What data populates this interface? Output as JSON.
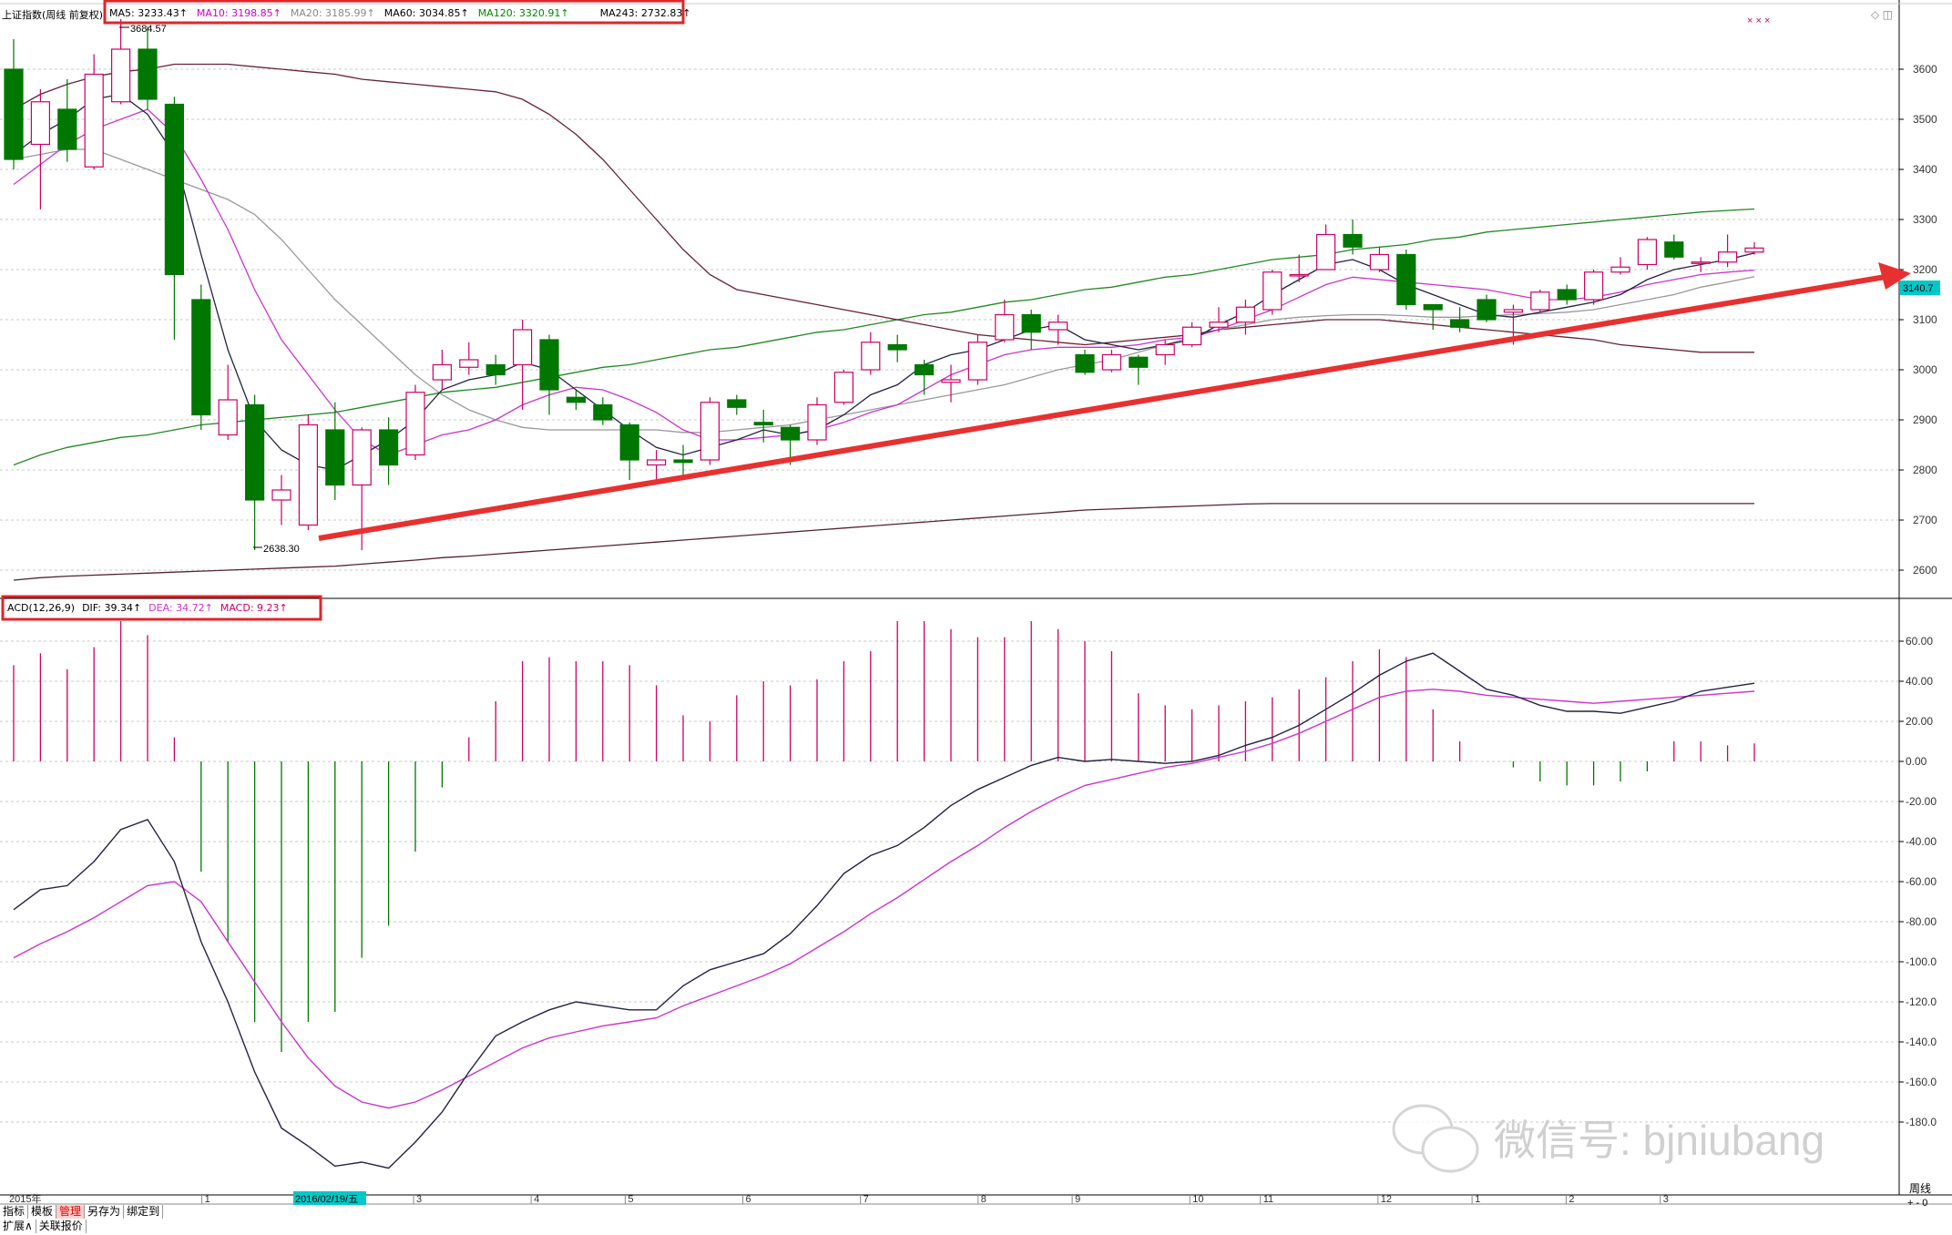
{
  "header": {
    "title": "上证指数(周线 前复权)",
    "ma": [
      {
        "label": "MA5: 3233.43↑",
        "color": "#000000"
      },
      {
        "label": "MA10: 3198.85↑",
        "color": "#cc00cc"
      },
      {
        "label": "MA20: 3185.99↑",
        "color": "#888888"
      },
      {
        "label": "MA60: 3034.85↑",
        "color": "#000000"
      },
      {
        "label": "MA120: 3320.91↑",
        "color": "#008800"
      },
      {
        "label": "MA243: 2732.83↑",
        "color": "#000000"
      }
    ],
    "marks": "× × ×",
    "window_icons": "◇ ◫"
  },
  "macd_header": {
    "name": "ACD(12,26,9)",
    "dif": "DIF: 39.34↑",
    "dea": "DEA: 34.72↑",
    "macd": "MACD: 9.23↑"
  },
  "price_axis": [
    "3600",
    "3500",
    "3400",
    "3300",
    "3200",
    "3100",
    "3000",
    "2900",
    "2800",
    "2700",
    "2600"
  ],
  "macd_axis": [
    "60.00",
    "40.00",
    "20.00",
    "0.00",
    "-20.00",
    "-40.00",
    "-60.00",
    "-80.00",
    "-100.0",
    "-120.0",
    "-140.0",
    "-160.0",
    "-180.0"
  ],
  "current_price": "3140.7",
  "annotations": {
    "high": "3684.57",
    "low": "2638.30"
  },
  "time_axis": {
    "year_label": "2015年",
    "months": [
      "1",
      "2",
      "3",
      "4",
      "5",
      "6",
      "7",
      "8",
      "9",
      "10",
      "11",
      "12",
      "1",
      "2",
      "3"
    ],
    "cursor_date": "2016/02/19/五"
  },
  "period_label": "周线",
  "bottom_tabs": [
    "指标",
    "模板",
    "管理",
    "另存为",
    "绑定到"
  ],
  "bottom_tabs2": [
    "扩展∧",
    "关联报价"
  ],
  "corner_buttons": "+ - 0",
  "watermark": "微信号: bjniubang",
  "colors": {
    "up": "#cc0066",
    "down": "#007700",
    "ma5": "#222244",
    "ma10": "#cc33cc",
    "ma20": "#999999",
    "ma60": "#662233",
    "ma120": "#228822",
    "ma243": "#552233",
    "highlight": "#ff0000",
    "trend_arrow": "#e83030"
  },
  "chart_data": {
    "type": "candlestick",
    "period": "weekly",
    "candles": [
      [
        3600,
        3420,
        3660,
        3400
      ],
      [
        3450,
        3535,
        3560,
        3320
      ],
      [
        3520,
        3440,
        3580,
        3415
      ],
      [
        3405,
        3590,
        3630,
        3400
      ],
      [
        3535,
        3640,
        3700,
        3530
      ],
      [
        3640,
        3540,
        3685,
        3520
      ],
      [
        3530,
        3190,
        3545,
        3060
      ],
      [
        3140,
        2910,
        3170,
        2880
      ],
      [
        2870,
        2940,
        3010,
        2860
      ],
      [
        2930,
        2740,
        2950,
        2640
      ],
      [
        2740,
        2760,
        2790,
        2690
      ],
      [
        2690,
        2890,
        2910,
        2680
      ],
      [
        2880,
        2770,
        2935,
        2740
      ],
      [
        2770,
        2880,
        2885,
        2640
      ],
      [
        2880,
        2810,
        2905,
        2770
      ],
      [
        2830,
        2955,
        2970,
        2820
      ],
      [
        2980,
        3010,
        3040,
        2960
      ],
      [
        3005,
        3020,
        3055,
        2990
      ],
      [
        3010,
        2990,
        3030,
        2970
      ],
      [
        3010,
        3080,
        3100,
        2920
      ],
      [
        3060,
        2960,
        3070,
        2910
      ],
      [
        2945,
        2935,
        2960,
        2920
      ],
      [
        2930,
        2900,
        2945,
        2890
      ],
      [
        2890,
        2820,
        2895,
        2780
      ],
      [
        2810,
        2820,
        2840,
        2780
      ],
      [
        2820,
        2815,
        2850,
        2790
      ],
      [
        2820,
        2935,
        2945,
        2810
      ],
      [
        2940,
        2925,
        2950,
        2910
      ],
      [
        2895,
        2890,
        2920,
        2855
      ],
      [
        2885,
        2860,
        2890,
        2810
      ],
      [
        2860,
        2930,
        2945,
        2850
      ],
      [
        2935,
        2995,
        3000,
        2930
      ],
      [
        3000,
        3055,
        3075,
        2990
      ],
      [
        3050,
        3040,
        3070,
        3015
      ],
      [
        3010,
        2990,
        3020,
        2950
      ],
      [
        2975,
        2980,
        3010,
        2935
      ],
      [
        2980,
        3055,
        3070,
        2970
      ],
      [
        3060,
        3110,
        3140,
        3055
      ],
      [
        3110,
        3075,
        3120,
        3040
      ],
      [
        3080,
        3095,
        3110,
        3050
      ],
      [
        3030,
        2995,
        3040,
        2990
      ],
      [
        3000,
        3030,
        3040,
        2995
      ],
      [
        3025,
        3005,
        3030,
        2970
      ],
      [
        3030,
        3050,
        3060,
        3010
      ],
      [
        3050,
        3085,
        3095,
        3045
      ],
      [
        3085,
        3095,
        3125,
        3075
      ],
      [
        3095,
        3125,
        3140,
        3070
      ],
      [
        3120,
        3195,
        3200,
        3110
      ],
      [
        3190,
        3190,
        3230,
        3175
      ],
      [
        3200,
        3270,
        3290,
        3200
      ],
      [
        3270,
        3245,
        3300,
        3230
      ],
      [
        3200,
        3230,
        3245,
        3195
      ],
      [
        3230,
        3130,
        3240,
        3120
      ],
      [
        3130,
        3120,
        3130,
        3080
      ],
      [
        3100,
        3085,
        3125,
        3075
      ],
      [
        3140,
        3100,
        3150,
        3095
      ],
      [
        3115,
        3120,
        3130,
        3050
      ],
      [
        3120,
        3155,
        3160,
        3115
      ],
      [
        3160,
        3140,
        3170,
        3130
      ],
      [
        3140,
        3195,
        3200,
        3130
      ],
      [
        3195,
        3205,
        3225,
        3190
      ],
      [
        3210,
        3260,
        3265,
        3200
      ],
      [
        3255,
        3225,
        3270,
        3220
      ],
      [
        3215,
        3215,
        3225,
        3195
      ],
      [
        3215,
        3235,
        3270,
        3205
      ],
      [
        3235,
        3243,
        3255,
        3230
      ]
    ],
    "ma5": [
      3430,
      3470,
      3500,
      3540,
      3550,
      3510,
      3430,
      3230,
      3040,
      2900,
      2840,
      2810,
      2800,
      2830,
      2860,
      2900,
      2960,
      2980,
      2990,
      3015,
      3000,
      2960,
      2920,
      2880,
      2845,
      2830,
      2845,
      2860,
      2880,
      2870,
      2880,
      2910,
      2950,
      2970,
      3010,
      3030,
      3040,
      3060,
      3080,
      3090,
      3060,
      3050,
      3040,
      3050,
      3060,
      3090,
      3115,
      3150,
      3180,
      3210,
      3220,
      3200,
      3170,
      3150,
      3130,
      3110,
      3105,
      3115,
      3125,
      3135,
      3150,
      3180,
      3200,
      3210,
      3220,
      3233
    ],
    "ma10": [
      3370,
      3410,
      3450,
      3480,
      3500,
      3520,
      3470,
      3380,
      3280,
      3160,
      3060,
      2990,
      2920,
      2860,
      2830,
      2850,
      2870,
      2880,
      2900,
      2930,
      2950,
      2965,
      2960,
      2940,
      2915,
      2880,
      2860,
      2860,
      2865,
      2870,
      2880,
      2895,
      2915,
      2930,
      2960,
      2990,
      3010,
      3030,
      3040,
      3045,
      3045,
      3045,
      3050,
      3060,
      3065,
      3080,
      3100,
      3120,
      3145,
      3170,
      3185,
      3180,
      3175,
      3170,
      3165,
      3160,
      3150,
      3140,
      3140,
      3145,
      3155,
      3170,
      3180,
      3190,
      3195,
      3199
    ],
    "ma20": [
      3420,
      3430,
      3440,
      3440,
      3420,
      3400,
      3380,
      3360,
      3340,
      3310,
      3260,
      3200,
      3140,
      3090,
      3040,
      2990,
      2950,
      2920,
      2900,
      2885,
      2880,
      2880,
      2880,
      2880,
      2880,
      2875,
      2875,
      2880,
      2885,
      2890,
      2900,
      2910,
      2920,
      2930,
      2940,
      2950,
      2960,
      2970,
      2985,
      3000,
      3010,
      3020,
      3035,
      3050,
      3065,
      3080,
      3090,
      3100,
      3105,
      3108,
      3110,
      3110,
      3108,
      3105,
      3105,
      3108,
      3110,
      3112,
      3115,
      3120,
      3130,
      3140,
      3150,
      3165,
      3175,
      3186
    ],
    "ma60": [
      3520,
      3550,
      3570,
      3585,
      3595,
      3600,
      3610,
      3610,
      3610,
      3605,
      3600,
      3595,
      3590,
      3580,
      3575,
      3570,
      3565,
      3560,
      3555,
      3540,
      3510,
      3470,
      3420,
      3360,
      3300,
      3240,
      3190,
      3160,
      3150,
      3140,
      3130,
      3120,
      3110,
      3100,
      3090,
      3080,
      3070,
      3065,
      3060,
      3055,
      3050,
      3055,
      3060,
      3065,
      3070,
      3080,
      3085,
      3090,
      3095,
      3100,
      3100,
      3100,
      3095,
      3090,
      3085,
      3080,
      3075,
      3070,
      3065,
      3060,
      3050,
      3045,
      3040,
      3035,
      3035,
      3035
    ],
    "ma120": [
      2810,
      2830,
      2845,
      2855,
      2865,
      2870,
      2880,
      2890,
      2895,
      2900,
      2905,
      2910,
      2915,
      2925,
      2935,
      2945,
      2955,
      2960,
      2965,
      2975,
      2985,
      2995,
      3005,
      3010,
      3020,
      3030,
      3040,
      3045,
      3055,
      3065,
      3075,
      3080,
      3090,
      3100,
      3110,
      3115,
      3125,
      3135,
      3140,
      3150,
      3160,
      3165,
      3175,
      3185,
      3190,
      3200,
      3210,
      3220,
      3225,
      3230,
      3240,
      3245,
      3250,
      3260,
      3265,
      3275,
      3280,
      3285,
      3290,
      3295,
      3300,
      3305,
      3310,
      3315,
      3318,
      3321
    ],
    "ma243": [
      2580,
      2585,
      2588,
      2590,
      2592,
      2594,
      2596,
      2598,
      2600,
      2602,
      2604,
      2606,
      2608,
      2612,
      2616,
      2620,
      2625,
      2628,
      2632,
      2636,
      2640,
      2644,
      2648,
      2652,
      2656,
      2660,
      2664,
      2668,
      2672,
      2676,
      2680,
      2684,
      2688,
      2692,
      2696,
      2700,
      2704,
      2708,
      2712,
      2716,
      2720,
      2722,
      2724,
      2726,
      2728,
      2730,
      2732,
      2733,
      2733,
      2733,
      2733,
      2733,
      2733,
      2733,
      2733,
      2733,
      2733,
      2733,
      2733,
      2733,
      2733,
      2733,
      2733,
      2733,
      2733,
      2733
    ],
    "dif": [
      -74,
      -64,
      -62,
      -50,
      -34,
      -29,
      -50,
      -90,
      -120,
      -155,
      -183,
      -192,
      -202,
      -200,
      -203,
      -190,
      -175,
      -155,
      -137,
      -130,
      -124,
      -120,
      -122,
      -124,
      -124,
      -112,
      -104,
      -100,
      -96,
      -86,
      -72,
      -56,
      -47,
      -42,
      -33,
      -22,
      -14,
      -8,
      -2,
      2,
      0,
      1,
      0,
      -1,
      0,
      3,
      8,
      12,
      18,
      26,
      34,
      43,
      50,
      54,
      45,
      36,
      33,
      28,
      25,
      25,
      24,
      27,
      30,
      35,
      37,
      39
    ],
    "dea": [
      -98,
      -91,
      -85,
      -78,
      -70,
      -62,
      -60,
      -70,
      -90,
      -110,
      -130,
      -148,
      -162,
      -170,
      -173,
      -170,
      -164,
      -157,
      -150,
      -143,
      -138,
      -135,
      -132,
      -130,
      -128,
      -122,
      -117,
      -112,
      -107,
      -101,
      -93,
      -85,
      -76,
      -68,
      -59,
      -50,
      -42,
      -33,
      -25,
      -18,
      -12,
      -9,
      -6,
      -3,
      -1,
      2,
      5,
      9,
      14,
      20,
      26,
      32,
      35,
      36,
      35,
      33,
      32,
      31,
      30,
      29,
      30,
      31,
      32,
      33,
      34,
      35
    ],
    "macd": [
      48,
      54,
      46,
      57,
      70,
      63,
      12,
      -55,
      -90,
      -130,
      -145,
      -130,
      -125,
      -98,
      -82,
      -45,
      -13,
      12,
      30,
      50,
      52,
      50,
      50,
      48,
      38,
      23,
      20,
      33,
      40,
      38,
      41,
      50,
      55,
      70,
      70,
      66,
      62,
      62,
      70,
      66,
      60,
      55,
      34,
      28,
      26,
      28,
      30,
      32,
      36,
      42,
      50,
      56,
      52,
      26,
      10,
      0,
      -3,
      -10,
      -12,
      -12,
      -10,
      -5,
      10,
      10,
      8,
      9
    ]
  }
}
